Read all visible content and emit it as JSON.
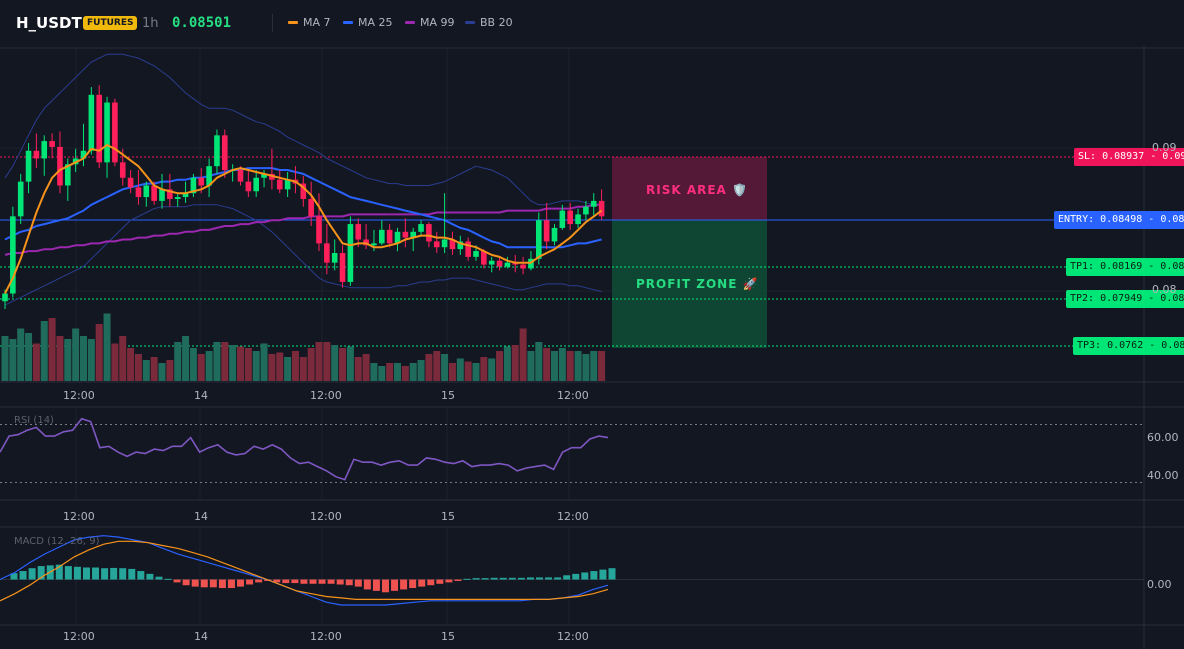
{
  "header": {
    "symbol": "H_USDT",
    "market_badge": "FUTURES",
    "timeframe": "1h",
    "last_price": "0.08501",
    "legend": [
      {
        "label": "MA 7",
        "color": "#f7931a"
      },
      {
        "label": "MA 25",
        "color": "#2962ff"
      },
      {
        "label": "MA 99",
        "color": "#9c27b0"
      },
      {
        "label": "BB 20",
        "color": "#2a3d8f"
      }
    ]
  },
  "trade": {
    "sl_label": "SL: 0.08937 - 0.09",
    "entry_label": "ENTRY: 0.08498 - 0.08",
    "tp1_label": "TP1: 0.08169 - 0.08",
    "tp2_label": "TP2: 0.07949 - 0.08",
    "tp3_label": "TP3: 0.0762 - 0.08",
    "risk_zone_label": "RISK AREA 🛡️",
    "profit_zone_label": "PROFIT ZONE 🚀",
    "colors": {
      "sl": "#f0145a",
      "entry": "#2962ff",
      "tp": "#00e676"
    }
  },
  "axes": {
    "price_ticks": [
      "0.09",
      "0.08"
    ],
    "time_labels": [
      "12:00",
      "14",
      "12:00",
      "15",
      "12:00"
    ],
    "rsi_ticks": [
      "60.00",
      "40.00"
    ],
    "macd_ticks": [
      "0.00"
    ]
  },
  "indicators": {
    "rsi_title": "RSI (14)",
    "macd_title": "MACD (12, 26, 9)"
  },
  "chart_data": {
    "type": "candlestick",
    "title": "H_USDT 1h",
    "candles": [
      {
        "o": 0.0806,
        "h": 0.0812,
        "l": 0.0802,
        "c": 0.081
      },
      {
        "o": 0.081,
        "h": 0.0855,
        "l": 0.0808,
        "c": 0.085
      },
      {
        "o": 0.085,
        "h": 0.0872,
        "l": 0.0846,
        "c": 0.0868
      },
      {
        "o": 0.0868,
        "h": 0.0888,
        "l": 0.0862,
        "c": 0.0884
      },
      {
        "o": 0.0884,
        "h": 0.0893,
        "l": 0.0875,
        "c": 0.088
      },
      {
        "o": 0.088,
        "h": 0.0892,
        "l": 0.0871,
        "c": 0.0889
      },
      {
        "o": 0.0889,
        "h": 0.0893,
        "l": 0.088,
        "c": 0.0886
      },
      {
        "o": 0.0886,
        "h": 0.0894,
        "l": 0.0862,
        "c": 0.0866
      },
      {
        "o": 0.0866,
        "h": 0.088,
        "l": 0.0858,
        "c": 0.0877
      },
      {
        "o": 0.0877,
        "h": 0.0885,
        "l": 0.0873,
        "c": 0.088
      },
      {
        "o": 0.088,
        "h": 0.0898,
        "l": 0.0876,
        "c": 0.0884
      },
      {
        "o": 0.0884,
        "h": 0.0917,
        "l": 0.0882,
        "c": 0.0913
      },
      {
        "o": 0.0913,
        "h": 0.0918,
        "l": 0.0875,
        "c": 0.0878
      },
      {
        "o": 0.0878,
        "h": 0.0912,
        "l": 0.087,
        "c": 0.0909
      },
      {
        "o": 0.0909,
        "h": 0.0911,
        "l": 0.0876,
        "c": 0.0878
      },
      {
        "o": 0.0878,
        "h": 0.0885,
        "l": 0.0866,
        "c": 0.087
      },
      {
        "o": 0.087,
        "h": 0.0874,
        "l": 0.0862,
        "c": 0.0865
      },
      {
        "o": 0.0865,
        "h": 0.0874,
        "l": 0.0856,
        "c": 0.086
      },
      {
        "o": 0.086,
        "h": 0.0868,
        "l": 0.0855,
        "c": 0.0866
      },
      {
        "o": 0.0866,
        "h": 0.0868,
        "l": 0.0856,
        "c": 0.0858
      },
      {
        "o": 0.0858,
        "h": 0.0872,
        "l": 0.0854,
        "c": 0.0864
      },
      {
        "o": 0.0864,
        "h": 0.0872,
        "l": 0.0855,
        "c": 0.0859
      },
      {
        "o": 0.0859,
        "h": 0.0862,
        "l": 0.0855,
        "c": 0.086
      },
      {
        "o": 0.086,
        "h": 0.0868,
        "l": 0.0857,
        "c": 0.0862
      },
      {
        "o": 0.0862,
        "h": 0.0872,
        "l": 0.086,
        "c": 0.087
      },
      {
        "o": 0.087,
        "h": 0.0875,
        "l": 0.0862,
        "c": 0.0866
      },
      {
        "o": 0.0866,
        "h": 0.088,
        "l": 0.086,
        "c": 0.0876
      },
      {
        "o": 0.0876,
        "h": 0.0895,
        "l": 0.0872,
        "c": 0.0892
      },
      {
        "o": 0.0892,
        "h": 0.0895,
        "l": 0.087,
        "c": 0.0874
      },
      {
        "o": 0.0874,
        "h": 0.0877,
        "l": 0.0868,
        "c": 0.0874
      },
      {
        "o": 0.0874,
        "h": 0.0876,
        "l": 0.0866,
        "c": 0.0868
      },
      {
        "o": 0.0868,
        "h": 0.0874,
        "l": 0.086,
        "c": 0.0863
      },
      {
        "o": 0.0863,
        "h": 0.0874,
        "l": 0.086,
        "c": 0.087
      },
      {
        "o": 0.087,
        "h": 0.0874,
        "l": 0.0865,
        "c": 0.0872
      },
      {
        "o": 0.0872,
        "h": 0.0885,
        "l": 0.0864,
        "c": 0.0869
      },
      {
        "o": 0.0869,
        "h": 0.0874,
        "l": 0.0862,
        "c": 0.0864
      },
      {
        "o": 0.0864,
        "h": 0.0873,
        "l": 0.086,
        "c": 0.0869
      },
      {
        "o": 0.0869,
        "h": 0.0876,
        "l": 0.0862,
        "c": 0.0867
      },
      {
        "o": 0.0867,
        "h": 0.0871,
        "l": 0.0855,
        "c": 0.0859
      },
      {
        "o": 0.0859,
        "h": 0.0868,
        "l": 0.0845,
        "c": 0.085
      },
      {
        "o": 0.085,
        "h": 0.0862,
        "l": 0.0832,
        "c": 0.0836
      },
      {
        "o": 0.0836,
        "h": 0.0846,
        "l": 0.082,
        "c": 0.0826
      },
      {
        "o": 0.0826,
        "h": 0.0838,
        "l": 0.0822,
        "c": 0.0831
      },
      {
        "o": 0.0831,
        "h": 0.0835,
        "l": 0.0813,
        "c": 0.0816
      },
      {
        "o": 0.0816,
        "h": 0.085,
        "l": 0.0814,
        "c": 0.0846
      },
      {
        "o": 0.0846,
        "h": 0.0849,
        "l": 0.0834,
        "c": 0.0838
      },
      {
        "o": 0.0838,
        "h": 0.0846,
        "l": 0.0833,
        "c": 0.0835
      },
      {
        "o": 0.0835,
        "h": 0.0843,
        "l": 0.0832,
        "c": 0.0836
      },
      {
        "o": 0.0836,
        "h": 0.0848,
        "l": 0.0835,
        "c": 0.0843
      },
      {
        "o": 0.0843,
        "h": 0.0846,
        "l": 0.0834,
        "c": 0.0836
      },
      {
        "o": 0.0836,
        "h": 0.0844,
        "l": 0.0832,
        "c": 0.0842
      },
      {
        "o": 0.0842,
        "h": 0.0849,
        "l": 0.0834,
        "c": 0.0839
      },
      {
        "o": 0.0839,
        "h": 0.0844,
        "l": 0.0832,
        "c": 0.0842
      },
      {
        "o": 0.0842,
        "h": 0.0848,
        "l": 0.084,
        "c": 0.0846
      },
      {
        "o": 0.0846,
        "h": 0.0847,
        "l": 0.0834,
        "c": 0.0837
      },
      {
        "o": 0.0837,
        "h": 0.0842,
        "l": 0.0831,
        "c": 0.0834
      },
      {
        "o": 0.0834,
        "h": 0.0862,
        "l": 0.0831,
        "c": 0.0838
      },
      {
        "o": 0.0838,
        "h": 0.0842,
        "l": 0.083,
        "c": 0.0833
      },
      {
        "o": 0.0833,
        "h": 0.084,
        "l": 0.083,
        "c": 0.0837
      },
      {
        "o": 0.0837,
        "h": 0.0839,
        "l": 0.0827,
        "c": 0.0829
      },
      {
        "o": 0.0829,
        "h": 0.0835,
        "l": 0.0827,
        "c": 0.0832
      },
      {
        "o": 0.0832,
        "h": 0.0833,
        "l": 0.0823,
        "c": 0.0825
      },
      {
        "o": 0.0825,
        "h": 0.0829,
        "l": 0.0821,
        "c": 0.0827
      },
      {
        "o": 0.0827,
        "h": 0.0829,
        "l": 0.0822,
        "c": 0.0824
      },
      {
        "o": 0.0824,
        "h": 0.0829,
        "l": 0.0823,
        "c": 0.0826
      },
      {
        "o": 0.0826,
        "h": 0.083,
        "l": 0.0821,
        "c": 0.0825
      },
      {
        "o": 0.0825,
        "h": 0.0829,
        "l": 0.082,
        "c": 0.0823
      },
      {
        "o": 0.0823,
        "h": 0.0832,
        "l": 0.0822,
        "c": 0.0828
      },
      {
        "o": 0.0828,
        "h": 0.0852,
        "l": 0.0825,
        "c": 0.0848
      },
      {
        "o": 0.0848,
        "h": 0.0857,
        "l": 0.0833,
        "c": 0.0837
      },
      {
        "o": 0.0837,
        "h": 0.0846,
        "l": 0.0835,
        "c": 0.0844
      },
      {
        "o": 0.0844,
        "h": 0.0856,
        "l": 0.0843,
        "c": 0.0853
      },
      {
        "o": 0.0853,
        "h": 0.0857,
        "l": 0.0843,
        "c": 0.0846
      },
      {
        "o": 0.0846,
        "h": 0.0854,
        "l": 0.0844,
        "c": 0.0851
      },
      {
        "o": 0.0851,
        "h": 0.0858,
        "l": 0.0848,
        "c": 0.0855
      },
      {
        "o": 0.0855,
        "h": 0.0862,
        "l": 0.085,
        "c": 0.0858
      },
      {
        "o": 0.0858,
        "h": 0.0864,
        "l": 0.0848,
        "c": 0.085
      }
    ],
    "ma7": [
      0.081,
      0.0818,
      0.0828,
      0.084,
      0.0852,
      0.0862,
      0.087,
      0.0874,
      0.0876,
      0.0878,
      0.088,
      0.0885,
      0.0884,
      0.0887,
      0.0885,
      0.0882,
      0.0879,
      0.0876,
      0.0871,
      0.0866,
      0.0864,
      0.0863,
      0.0862,
      0.0862,
      0.0863,
      0.0864,
      0.0866,
      0.087,
      0.0872,
      0.0874,
      0.0875,
      0.0874,
      0.0873,
      0.0872,
      0.0871,
      0.087,
      0.0869,
      0.0868,
      0.0865,
      0.0861,
      0.0855,
      0.0848,
      0.0842,
      0.0836,
      0.0835,
      0.0836,
      0.0836,
      0.0834,
      0.0834,
      0.0835,
      0.0836,
      0.0838,
      0.0839,
      0.084,
      0.084,
      0.0839,
      0.0839,
      0.0838,
      0.0836,
      0.0835,
      0.0834,
      0.0832,
      0.083,
      0.0829,
      0.0827,
      0.0826,
      0.0826,
      0.0826,
      0.0829,
      0.0831,
      0.0833,
      0.0836,
      0.0839,
      0.0843,
      0.0847,
      0.085,
      0.0853
    ],
    "ma25": [
      0.0838,
      0.084,
      0.0842,
      0.0843,
      0.0845,
      0.0846,
      0.0847,
      0.0848,
      0.0849,
      0.0851,
      0.0853,
      0.0856,
      0.0858,
      0.086,
      0.0862,
      0.0864,
      0.0865,
      0.0866,
      0.0867,
      0.0867,
      0.0868,
      0.0868,
      0.0869,
      0.0869,
      0.087,
      0.087,
      0.0871,
      0.0872,
      0.0873,
      0.0874,
      0.0874,
      0.0875,
      0.0875,
      0.0875,
      0.0875,
      0.0874,
      0.0874,
      0.0873,
      0.0872,
      0.087,
      0.0868,
      0.0866,
      0.0864,
      0.0862,
      0.086,
      0.0859,
      0.0858,
      0.0857,
      0.0856,
      0.0855,
      0.0854,
      0.0853,
      0.0852,
      0.0851,
      0.085,
      0.0849,
      0.0848,
      0.0846,
      0.0844,
      0.0843,
      0.0841,
      0.0839,
      0.0837,
      0.0836,
      0.0834,
      0.0834,
      0.0834,
      0.0834,
      0.0834,
      0.0834,
      0.0834,
      0.0834,
      0.0835,
      0.0836,
      0.0836,
      0.0837,
      0.0838
    ],
    "ma99": [
      0.083,
      0.0831,
      0.0831,
      0.0832,
      0.0832,
      0.0833,
      0.0833,
      0.0834,
      0.0834,
      0.0835,
      0.0835,
      0.0836,
      0.0836,
      0.0837,
      0.0837,
      0.0838,
      0.0838,
      0.0839,
      0.0839,
      0.084,
      0.084,
      0.0841,
      0.0841,
      0.0842,
      0.0842,
      0.0843,
      0.0843,
      0.0844,
      0.0845,
      0.0845,
      0.0846,
      0.0846,
      0.0847,
      0.0847,
      0.0848,
      0.0848,
      0.0849,
      0.0849,
      0.0849,
      0.085,
      0.085,
      0.085,
      0.085,
      0.085,
      0.0851,
      0.0851,
      0.0851,
      0.0851,
      0.0851,
      0.0851,
      0.0851,
      0.0851,
      0.0851,
      0.0851,
      0.0851,
      0.0852,
      0.0852,
      0.0852,
      0.0852,
      0.0852,
      0.0852,
      0.0852,
      0.0852,
      0.0852,
      0.0853,
      0.0853,
      0.0853,
      0.0853,
      0.0853,
      0.0854,
      0.0854,
      0.0854,
      0.0854,
      0.0855,
      0.0855,
      0.0856,
      0.0856
    ],
    "bb_upper": [
      0.087,
      0.0876,
      0.0884,
      0.0892,
      0.09,
      0.0906,
      0.091,
      0.0914,
      0.0918,
      0.0922,
      0.0926,
      0.093,
      0.0932,
      0.0934,
      0.0934,
      0.0934,
      0.0933,
      0.0932,
      0.093,
      0.0928,
      0.0925,
      0.0922,
      0.0918,
      0.0914,
      0.0911,
      0.0908,
      0.0906,
      0.0906,
      0.0906,
      0.0905,
      0.0903,
      0.0901,
      0.0899,
      0.0898,
      0.0896,
      0.0894,
      0.0891,
      0.0889,
      0.0887,
      0.0885,
      0.0883,
      0.088,
      0.0878,
      0.0876,
      0.0874,
      0.0872,
      0.087,
      0.0869,
      0.0868,
      0.0867,
      0.0867,
      0.0866,
      0.0866,
      0.0866,
      0.0866,
      0.0867,
      0.0868,
      0.087,
      0.0872,
      0.0874,
      0.0876,
      0.0875,
      0.0874,
      0.0872,
      0.087,
      0.0866,
      0.0862,
      0.0858,
      0.0856,
      0.0856,
      0.0857,
      0.0858,
      0.0858,
      0.0858,
      0.0857,
      0.0856,
      0.0856
    ],
    "bb_lower": [
      0.0804,
      0.0806,
      0.0808,
      0.081,
      0.0812,
      0.0814,
      0.0816,
      0.0818,
      0.082,
      0.0822,
      0.0824,
      0.0828,
      0.0832,
      0.0836,
      0.084,
      0.0844,
      0.0848,
      0.085,
      0.0852,
      0.0854,
      0.0855,
      0.0855,
      0.0855,
      0.0855,
      0.0856,
      0.0856,
      0.0856,
      0.0856,
      0.0855,
      0.0854,
      0.0852,
      0.085,
      0.0848,
      0.0845,
      0.0842,
      0.0838,
      0.0834,
      0.083,
      0.0826,
      0.0822,
      0.0818,
      0.0816,
      0.0815,
      0.0814,
      0.0813,
      0.0813,
      0.0813,
      0.0813,
      0.0813,
      0.0813,
      0.0814,
      0.0814,
      0.0815,
      0.0816,
      0.0816,
      0.0817,
      0.0817,
      0.0818,
      0.0818,
      0.0818,
      0.0817,
      0.0816,
      0.0815,
      0.0814,
      0.0813,
      0.0812,
      0.0812,
      0.0813,
      0.0814,
      0.0815,
      0.0815,
      0.0815,
      0.0814,
      0.0814,
      0.0813,
      0.0812,
      0.0811
    ],
    "volume": [
      30,
      28,
      35,
      32,
      25,
      40,
      42,
      30,
      28,
      35,
      30,
      28,
      38,
      45,
      25,
      30,
      22,
      18,
      14,
      16,
      12,
      14,
      26,
      30,
      22,
      18,
      20,
      26,
      26,
      24,
      23,
      22,
      20,
      25,
      18,
      19,
      16,
      20,
      16,
      22,
      26,
      26,
      24,
      22,
      23,
      16,
      18,
      12,
      10,
      12,
      12,
      10,
      12,
      14,
      18,
      20,
      18,
      12,
      15,
      13,
      12,
      16,
      15,
      20,
      23,
      24,
      35,
      20,
      26,
      22,
      20,
      22,
      20,
      20,
      18,
      20,
      20
    ],
    "rsi": [
      51,
      62,
      63,
      66,
      68,
      62,
      62,
      65,
      66,
      74,
      72,
      54,
      55,
      51,
      48,
      51,
      50,
      53,
      52,
      55,
      55,
      61,
      51,
      54,
      56,
      51,
      49,
      50,
      55,
      53,
      56,
      53,
      47,
      43,
      44,
      41,
      38,
      34,
      32,
      46,
      44,
      44,
      42,
      44,
      45,
      42,
      42,
      47,
      46,
      44,
      43,
      45,
      41,
      42,
      42,
      43,
      42,
      38,
      40,
      41,
      42,
      39,
      51,
      54,
      54,
      60,
      62,
      61
    ],
    "macd_hist": [
      0.00045,
      0.0006,
      0.0008,
      0.00095,
      0.001,
      0.00105,
      0.00095,
      0.0009,
      0.00085,
      0.00085,
      0.0008,
      0.00082,
      0.0008,
      0.00075,
      0.0006,
      0.0004,
      0.0002,
      5e-05,
      -0.0002,
      -0.0004,
      -0.0005,
      -0.00055,
      -0.00055,
      -0.0006,
      -0.0006,
      -0.0005,
      -0.00035,
      -0.0002,
      -0.0001,
      -0.0002,
      -0.00025,
      -0.00025,
      -0.0003,
      -0.0003,
      -0.0003,
      -0.0003,
      -0.00035,
      -0.0004,
      -0.0005,
      -0.0007,
      -0.0008,
      -0.0009,
      -0.0008,
      -0.0007,
      -0.0006,
      -0.0005,
      -0.0004,
      -0.0003,
      -0.0002,
      -0.0001,
      5e-05,
      0.0001,
      0.0001,
      0.00012,
      0.00012,
      0.00012,
      0.00012,
      0.00015,
      0.00015,
      0.00015,
      0.00015,
      0.0003,
      0.0004,
      0.0005,
      0.0006,
      0.0007,
      0.0008
    ],
    "macd_line": [
      0.0,
      0.0005,
      0.0012,
      0.0018,
      0.0023,
      0.0028,
      0.003,
      0.0031,
      0.003,
      0.0028,
      0.0026,
      0.0022,
      0.0018,
      0.0015,
      0.0012,
      0.0009,
      0.0006,
      0.0003,
      0.0,
      -0.0004,
      -0.0008,
      -0.0012,
      -0.0016,
      -0.0018,
      -0.0018,
      -0.0018,
      -0.0018,
      -0.0017,
      -0.0016,
      -0.0015,
      -0.0015,
      -0.0015,
      -0.0015,
      -0.0015,
      -0.0015,
      -0.0015,
      -0.0014,
      -0.0014,
      -0.0013,
      -0.0011,
      -0.0007,
      -0.0004
    ],
    "macd_signal": [
      -0.0015,
      -0.001,
      -0.0004,
      0.0003,
      0.0009,
      0.0016,
      0.0021,
      0.0025,
      0.0027,
      0.0027,
      0.0026,
      0.0024,
      0.0022,
      0.0019,
      0.0016,
      0.0012,
      0.0008,
      0.0004,
      0.0,
      -0.0004,
      -0.0008,
      -0.001,
      -0.0012,
      -0.0013,
      -0.0014,
      -0.0014,
      -0.0014,
      -0.0014,
      -0.0014,
      -0.0014,
      -0.0014,
      -0.0014,
      -0.0014,
      -0.0014,
      -0.0014,
      -0.0014,
      -0.0014,
      -0.0014,
      -0.0013,
      -0.0012,
      -0.001,
      -0.0007
    ],
    "price_range": [
      0.076,
      0.093
    ],
    "rsi_range": [
      20,
      80
    ],
    "macd_range": [
      -0.003,
      0.0035
    ],
    "grid": true
  }
}
